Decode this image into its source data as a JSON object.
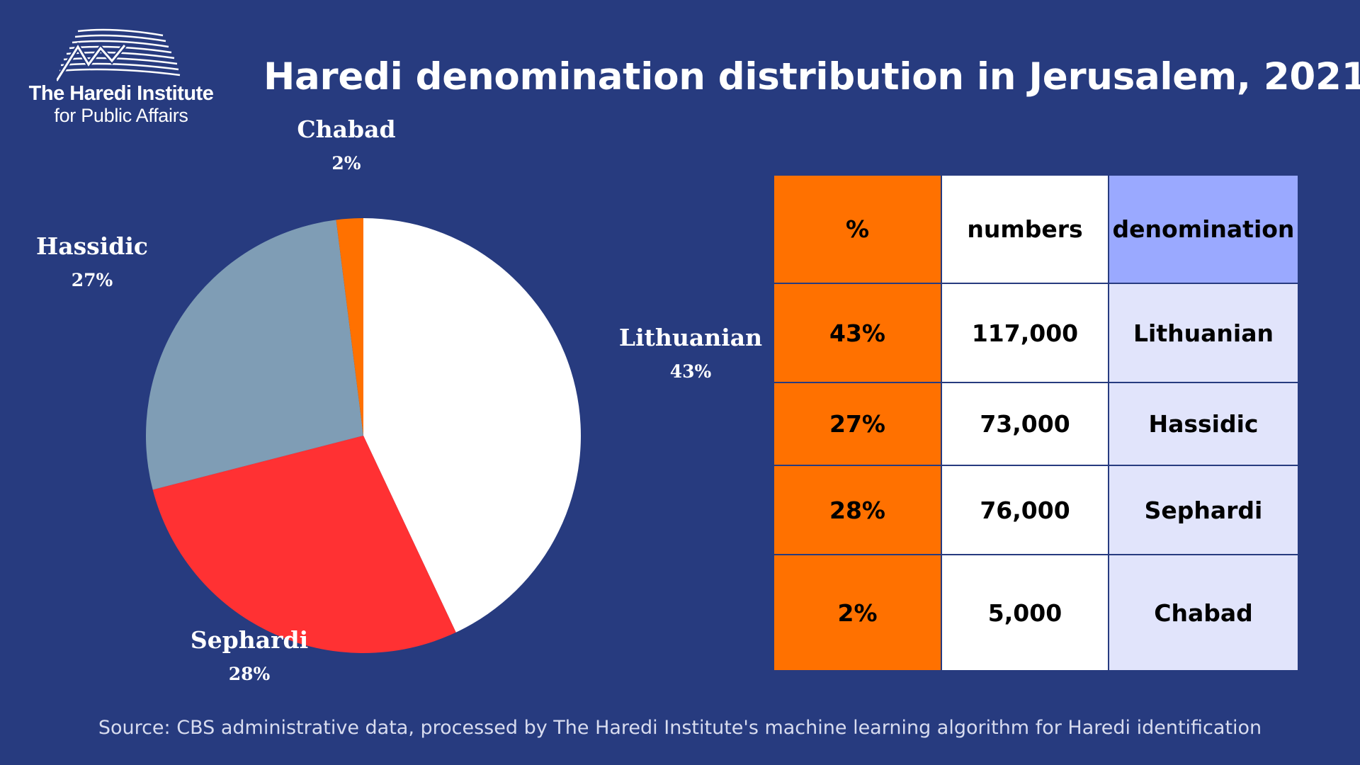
{
  "logo": {
    "line1": "The Haredi Institute",
    "line2": "for Public Affairs"
  },
  "title": "Haredi denomination distribution in Jerusalem, 2021",
  "chart_data": {
    "type": "pie",
    "title": "Haredi denomination distribution in Jerusalem, 2021",
    "slices": [
      {
        "name": "Lithuanian",
        "value": 43,
        "label": "43%",
        "color": "#ffffff"
      },
      {
        "name": "Sephardi",
        "value": 28,
        "label": "28%",
        "color": "#ff3133"
      },
      {
        "name": "Hassidic",
        "value": 27,
        "label": "27%",
        "color": "#7f9db5"
      },
      {
        "name": "Chabad",
        "value": 2,
        "label": "2%",
        "color": "#ff7100"
      }
    ],
    "start": "12 o'clock",
    "direction": "clockwise"
  },
  "table": {
    "headers": {
      "pct": "%",
      "numbers": "numbers",
      "denomination": "denomination"
    },
    "rows": [
      {
        "pct": "43%",
        "numbers": "117,000",
        "denomination": "Lithuanian"
      },
      {
        "pct": "27%",
        "numbers": "73,000",
        "denomination": "Hassidic"
      },
      {
        "pct": "28%",
        "numbers": "76,000",
        "denomination": "Sephardi"
      },
      {
        "pct": "2%",
        "numbers": "5,000",
        "denomination": "Chabad"
      }
    ]
  },
  "colors": {
    "background": "#273b7f",
    "pct_column": "#ff7100",
    "denomination_header": "#9aa9ff",
    "denomination_cells": "#e1e4fb"
  },
  "source": "Source: CBS administrative data, processed by The Haredi Institute's machine learning algorithm for Haredi identification"
}
